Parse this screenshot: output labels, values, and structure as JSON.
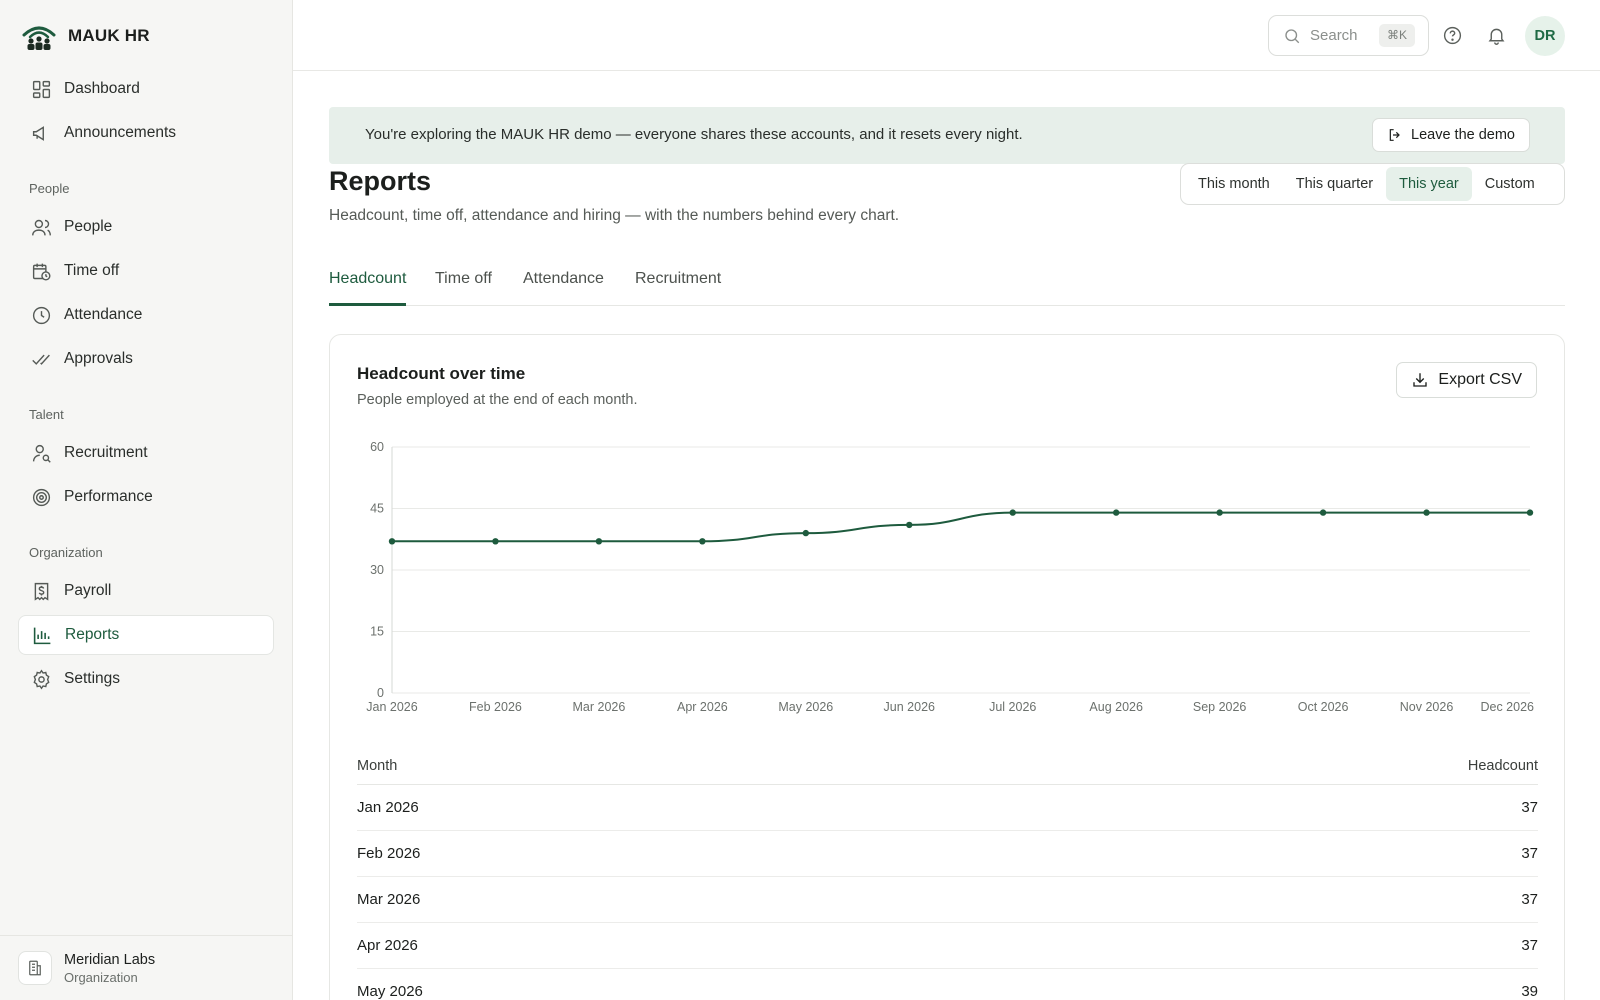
{
  "brand": {
    "name": "MAUK HR"
  },
  "sidebar": {
    "top_items": [
      {
        "label": "Dashboard",
        "icon": "dashboard-icon"
      },
      {
        "label": "Announcements",
        "icon": "megaphone-icon"
      }
    ],
    "sections": [
      {
        "title": "People",
        "items": [
          {
            "label": "People",
            "icon": "users-icon"
          },
          {
            "label": "Time off",
            "icon": "calendar-clock-icon"
          },
          {
            "label": "Attendance",
            "icon": "clock-icon"
          },
          {
            "label": "Approvals",
            "icon": "double-check-icon"
          }
        ]
      },
      {
        "title": "Talent",
        "items": [
          {
            "label": "Recruitment",
            "icon": "user-search-icon"
          },
          {
            "label": "Performance",
            "icon": "target-icon"
          }
        ]
      },
      {
        "title": "Organization",
        "items": [
          {
            "label": "Payroll",
            "icon": "receipt-dollar-icon"
          },
          {
            "label": "Reports",
            "icon": "bar-chart-icon",
            "active": true
          },
          {
            "label": "Settings",
            "icon": "gear-icon"
          }
        ]
      }
    ],
    "org": {
      "name": "Meridian Labs",
      "sub": "Organization"
    }
  },
  "topbar": {
    "search_placeholder": "Search",
    "search_shortcut": "⌘K",
    "avatar_initials": "DR"
  },
  "banner": {
    "text": "You're exploring the MAUK HR demo — everyone shares these accounts, and it resets every night.",
    "leave_label": "Leave the demo"
  },
  "page": {
    "title": "Reports",
    "subtitle": "Headcount, time off, attendance and hiring — with the numbers behind every chart."
  },
  "periods": [
    {
      "label": "This month",
      "active": false
    },
    {
      "label": "This quarter",
      "active": false
    },
    {
      "label": "This year",
      "active": true
    },
    {
      "label": "Custom",
      "active": false
    }
  ],
  "tabs": [
    {
      "label": "Headcount",
      "active": true
    },
    {
      "label": "Time off",
      "active": false
    },
    {
      "label": "Attendance",
      "active": false
    },
    {
      "label": "Recruitment",
      "active": false
    }
  ],
  "card": {
    "title": "Headcount over time",
    "subtitle": "People employed at the end of each month.",
    "export_label": "Export CSV"
  },
  "chart_data": {
    "type": "line",
    "x": [
      "Jan 2026",
      "Feb 2026",
      "Mar 2026",
      "Apr 2026",
      "May 2026",
      "Jun 2026",
      "Jul 2026",
      "Aug 2026",
      "Sep 2026",
      "Oct 2026",
      "Nov 2026",
      "Dec 2026"
    ],
    "series": [
      {
        "values": [
          37,
          37,
          37,
          37,
          39,
          41,
          44,
          44,
          44,
          44,
          44,
          44
        ]
      }
    ],
    "yticks": [
      0,
      15,
      30,
      45,
      60
    ],
    "ylim": [
      0,
      60
    ],
    "grid": true,
    "line_color": "#1e5b3e"
  },
  "table": {
    "headers": [
      "Month",
      "Headcount"
    ],
    "rows": [
      [
        "Jan 2026",
        "37"
      ],
      [
        "Feb 2026",
        "37"
      ],
      [
        "Mar 2026",
        "37"
      ],
      [
        "Apr 2026",
        "37"
      ],
      [
        "May 2026",
        "39"
      ]
    ]
  }
}
